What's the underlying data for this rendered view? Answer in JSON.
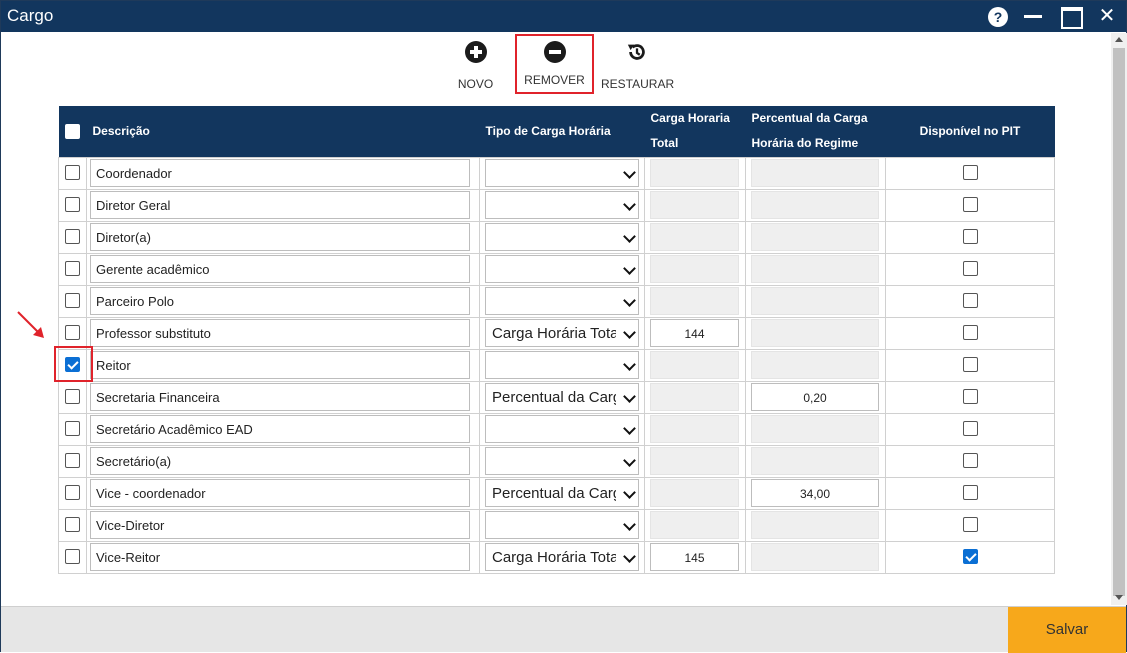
{
  "window": {
    "title": "Cargo",
    "help_label": "?"
  },
  "toolbar": {
    "novo": "NOVO",
    "remover": "REMOVER",
    "restaurar": "RESTAURAR"
  },
  "table": {
    "headers": {
      "descricao": "Descrição",
      "tipo": "Tipo de Carga Horária",
      "carga_total_1": "Carga Horaria",
      "carga_total_2": "Total",
      "percentual_1": "Percentual da Carga",
      "percentual_2": "Horária do Regime",
      "pit": "Disponível no PIT"
    },
    "rows": [
      {
        "checked": false,
        "descricao": "Coordenador",
        "tipo": "",
        "carga": "",
        "percentual": "",
        "pit": false
      },
      {
        "checked": false,
        "descricao": "Diretor Geral",
        "tipo": "",
        "carga": "",
        "percentual": "",
        "pit": false
      },
      {
        "checked": false,
        "descricao": "Diretor(a)",
        "tipo": "",
        "carga": "",
        "percentual": "",
        "pit": false
      },
      {
        "checked": false,
        "descricao": "Gerente acadêmico",
        "tipo": "",
        "carga": "",
        "percentual": "",
        "pit": false
      },
      {
        "checked": false,
        "descricao": "Parceiro Polo",
        "tipo": "",
        "carga": "",
        "percentual": "",
        "pit": false
      },
      {
        "checked": false,
        "descricao": "Professor substituto",
        "tipo": "Carga Horária Tota",
        "carga": "144",
        "percentual": "",
        "pit": false
      },
      {
        "checked": true,
        "descricao": "Reitor",
        "tipo": "",
        "carga": "",
        "percentual": "",
        "pit": false
      },
      {
        "checked": false,
        "descricao": "Secretaria Financeira",
        "tipo": "Percentual da Carg",
        "carga": "",
        "percentual": "0,20",
        "pit": false
      },
      {
        "checked": false,
        "descricao": "Secretário Acadêmico EAD",
        "tipo": "",
        "carga": "",
        "percentual": "",
        "pit": false
      },
      {
        "checked": false,
        "descricao": "Secretário(a)",
        "tipo": "",
        "carga": "",
        "percentual": "",
        "pit": false
      },
      {
        "checked": false,
        "descricao": "Vice - coordenador",
        "tipo": "Percentual da Carg",
        "carga": "",
        "percentual": "34,00",
        "pit": false
      },
      {
        "checked": false,
        "descricao": "Vice-Diretor",
        "tipo": "",
        "carga": "",
        "percentual": "",
        "pit": false
      },
      {
        "checked": false,
        "descricao": "Vice-Reitor",
        "tipo": "Carga Horária Tota",
        "carga": "145",
        "percentual": "",
        "pit": true
      }
    ]
  },
  "footer": {
    "save": "Salvar"
  },
  "colors": {
    "header": "#12365e",
    "accent": "#f7a81b",
    "highlight": "#e0232b",
    "check": "#0b6fd4"
  }
}
